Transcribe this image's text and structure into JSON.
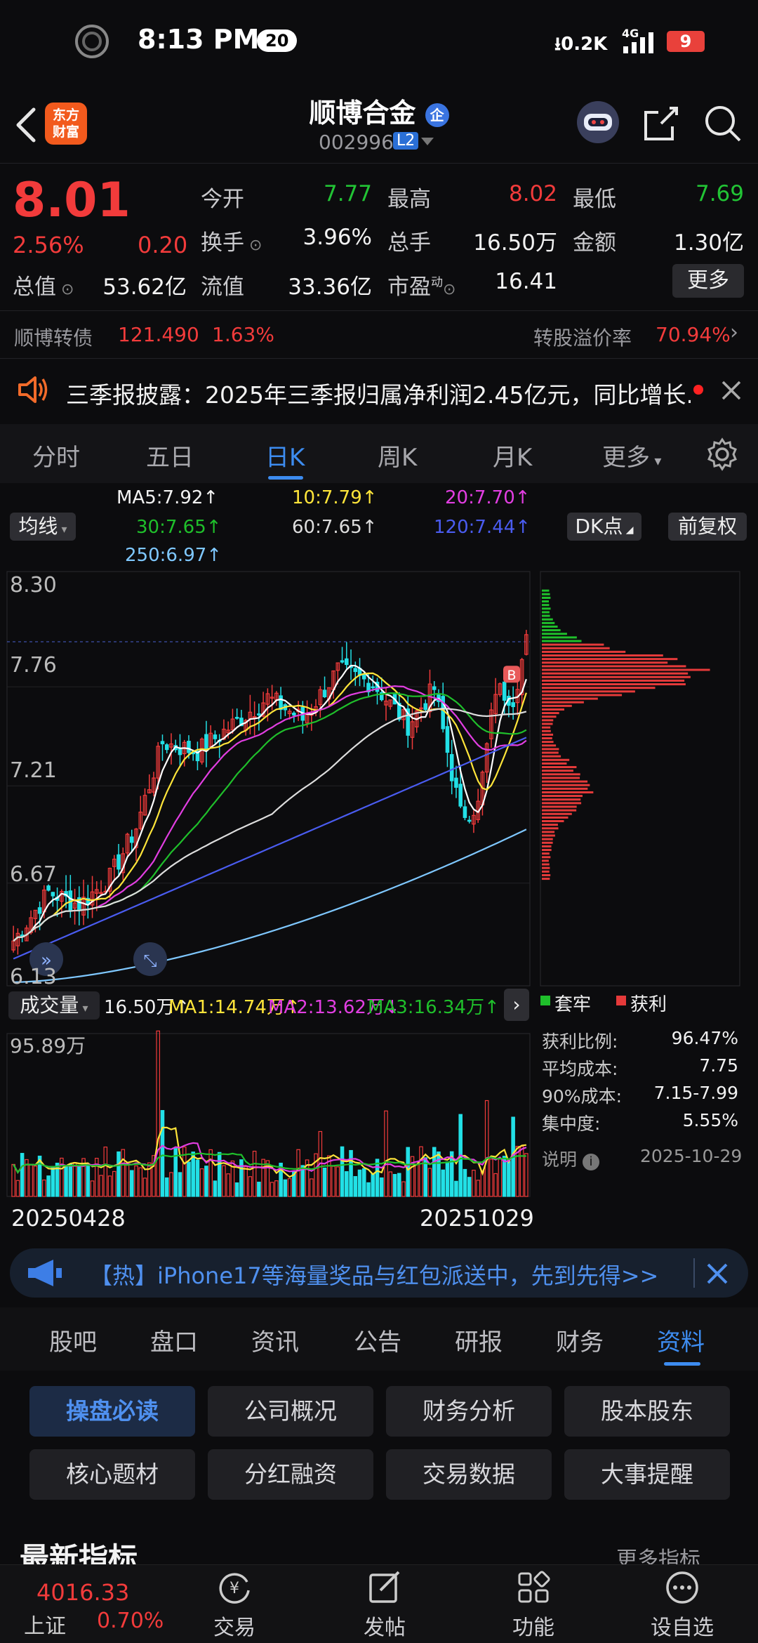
{
  "status": {
    "time": "8:13 PM",
    "notif_count": "20",
    "net_speed": "⭳0.2K",
    "signal": "4G",
    "battery": "9"
  },
  "header": {
    "app_logo": "东方\n财富",
    "stock_name": "顺博合金",
    "badge": "企",
    "stock_code": "002996",
    "level": "L2"
  },
  "quote": {
    "price": "8.01",
    "change_pct": "2.56%",
    "change": "0.20",
    "open_label": "今开",
    "open": "7.77",
    "high_label": "最高",
    "high": "8.02",
    "low_label": "最低",
    "low": "7.69",
    "turnover_label": "换手",
    "turnover": "3.96%",
    "vol_label": "总手",
    "vol": "16.50万",
    "amount_label": "金额",
    "amount": "1.30亿",
    "mktcap_label": "总值",
    "mktcap": "53.62亿",
    "float_label": "流值",
    "float": "33.36亿",
    "pe_label": "市盈",
    "pe_sup": "动",
    "pe": "16.41",
    "more": "更多"
  },
  "bond": {
    "name": "顺博转债",
    "price": "121.490",
    "pct": "1.63%",
    "premium_label": "转股溢价率",
    "premium": "70.94%"
  },
  "notice": {
    "text": "三季报披露：2025年三季报归属净利润2.45亿元，同比增长..."
  },
  "chart_tabs": [
    "分时",
    "五日",
    "日K",
    "周K",
    "月K",
    "更多"
  ],
  "ma": {
    "selector": "均线",
    "ma5": "MA5:7.92↑",
    "ma10": "10:7.79↑",
    "ma20": "20:7.70↑",
    "ma30": "30:7.65↑",
    "ma60": "60:7.65↑",
    "ma120": "120:7.44↑",
    "ma250": "250:6.97↑",
    "dk": "DK点",
    "adjust": "前复权"
  },
  "price_axis": [
    "8.30",
    "7.76",
    "7.21",
    "6.67",
    "6.13"
  ],
  "volume": {
    "selector": "成交量",
    "vol": "16.50万↑",
    "ma1": "MA1:14.74万↑",
    "ma2": "MA2:13.62万↓",
    "ma3": "MA3:16.34万↑",
    "max": "95.89万"
  },
  "dates": {
    "start": "20250428",
    "end": "20251029"
  },
  "chip": {
    "legend_trapped": "套牢",
    "legend_profit": "获利",
    "rows": [
      {
        "label": "获利比例:",
        "value": "96.47%"
      },
      {
        "label": "平均成本:",
        "value": "7.75"
      },
      {
        "label": "90%成本:",
        "value": "7.15-7.99"
      },
      {
        "label": "集中度:",
        "value": "5.55%"
      }
    ],
    "note": "说明",
    "date": "2025-10-29"
  },
  "hot_banner": "【热】iPhone17等海量奖品与红包派送中，先到先得>>",
  "bottom_tabs": [
    "股吧",
    "盘口",
    "资讯",
    "公告",
    "研报",
    "财务",
    "资料"
  ],
  "grid_buttons": [
    "操盘必读",
    "公司概况",
    "财务分析",
    "股本股东",
    "核心题材",
    "分红融资",
    "交易数据",
    "大事提醒"
  ],
  "section": {
    "title": "最新指标",
    "more": "更多指标"
  },
  "index": {
    "value": "4016.33",
    "name": "上证",
    "pct": "0.70%"
  },
  "nav": [
    "交易",
    "发帖",
    "功能",
    "设自选"
  ],
  "colors": {
    "up": "#f23b3b",
    "down": "#22c435",
    "accent": "#3d8cf0",
    "cyan": "#22e0e6"
  }
}
